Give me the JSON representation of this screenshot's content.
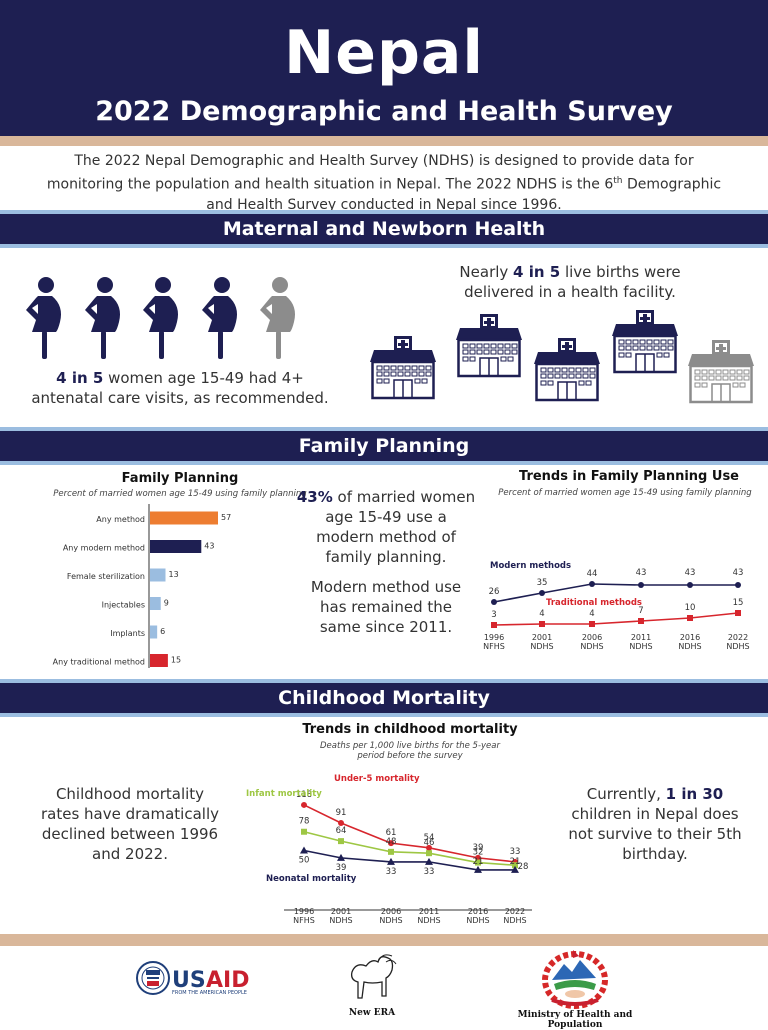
{
  "header": {
    "title": "Nepal",
    "subtitle": "2022 Demographic and Health Survey"
  },
  "intro": {
    "text_part1": "The 2022 Nepal Demographic and Health Survey (NDHS) is designed to provide data for monitoring the population and health situation in Nepal. The 2022 NDHS is the 6",
    "superscript": "th",
    "text_part2": " Demographic and Health Survey conducted in Nepal since 1996."
  },
  "colors": {
    "navy": "#1e1f52",
    "light_blue": "#9bbde0",
    "tan": "#d9b79a",
    "orange": "#ed7d31",
    "red": "#d7262d",
    "green": "#9ec744",
    "gray": "#8c8c8c"
  },
  "maternal": {
    "section_title": "Maternal and Newborn Health",
    "anc_icons": {
      "icon": "pregnant-woman-icon",
      "total": 5,
      "highlighted": 4
    },
    "anc_stat_bold": "4 in 5",
    "anc_stat_rest": " women age 15-49 had 4+ antenatal care visits, as recommended.",
    "facility_icons": {
      "icon": "hospital-icon",
      "total": 5,
      "highlighted": 4
    },
    "facility_stat_pre": "Nearly ",
    "facility_stat_bold": "4 in 5",
    "facility_stat_rest": " live births were delivered in a health facility."
  },
  "family_planning": {
    "section_title": "Family Planning",
    "stat1_bold": "43%",
    "stat1_rest": " of married women age 15-49 use a modern method of family planning.",
    "stat2": "Modern method use has remained the same since 2011."
  },
  "childhood": {
    "section_title": "Childhood Mortality",
    "left_stat": "Childhood mortality rates have dramatically declined between 1996 and 2022.",
    "right_stat_pre": "Currently, ",
    "right_stat_bold": "1 in 30",
    "right_stat_rest": " children in Nepal does not survive to their 5th birthday."
  },
  "chart_data": [
    {
      "id": "fp-bar",
      "type": "bar",
      "orientation": "horizontal",
      "title": "Family Planning",
      "subtitle": "Percent of married women age 15-49 using family planning",
      "categories": [
        "Any method",
        "Any modern method",
        "Female sterilization",
        "Injectables",
        "Implants",
        "Any traditional method"
      ],
      "values": [
        57,
        43,
        13,
        9,
        6,
        15
      ],
      "bar_colors": [
        "#ed7d31",
        "#1e1f52",
        "#9bbde0",
        "#9bbde0",
        "#9bbde0",
        "#d7262d"
      ],
      "xlim": [
        0,
        60
      ],
      "grid": false
    },
    {
      "id": "fp-trend",
      "type": "line",
      "title": "Trends in Family Planning Use",
      "subtitle": "Percent of married women age 15-49 using family planning",
      "categories": [
        "1996 NFHS",
        "2001 NDHS",
        "2006 NDHS",
        "2011 NDHS",
        "2016 NDHS",
        "2022 NDHS"
      ],
      "series": [
        {
          "name": "Modern methods",
          "values": [
            26,
            35,
            44,
            43,
            43,
            43
          ],
          "color": "#1e1f52",
          "marker": "circle"
        },
        {
          "name": "Traditional methods",
          "values": [
            3,
            4,
            4,
            7,
            10,
            15
          ],
          "color": "#d7262d",
          "marker": "square"
        }
      ],
      "ylim": [
        0,
        50
      ],
      "grid": false
    },
    {
      "id": "mortality-trend",
      "type": "line",
      "title": "Trends in childhood mortality",
      "subtitle": "Deaths per 1,000 live births for the 5-year period before the survey",
      "categories": [
        "1996 NFHS",
        "2001 NDHS",
        "2006 NDHS",
        "2011 NDHS",
        "2016 NDHS",
        "2022 NDHS"
      ],
      "series": [
        {
          "name": "Under-5 mortality",
          "values": [
            118,
            91,
            61,
            54,
            39,
            33
          ],
          "color": "#d7262d",
          "marker": "circle"
        },
        {
          "name": "Infant mortality",
          "values": [
            78,
            64,
            48,
            46,
            32,
            28
          ],
          "color": "#9ec744",
          "marker": "square"
        },
        {
          "name": "Neonatal mortality",
          "values": [
            50,
            39,
            33,
            33,
            21,
            21
          ],
          "color": "#1e1f52",
          "marker": "triangle"
        }
      ],
      "ylim": [
        0,
        130
      ],
      "grid": false
    }
  ],
  "footer": {
    "logos": [
      {
        "name": "USAID",
        "tagline": "FROM THE AMERICAN PEOPLE"
      },
      {
        "name": "New ERA",
        "caption": "New ERA"
      },
      {
        "name": "Ministry of Health and Population",
        "caption": "Ministry of Health and Population"
      }
    ]
  }
}
